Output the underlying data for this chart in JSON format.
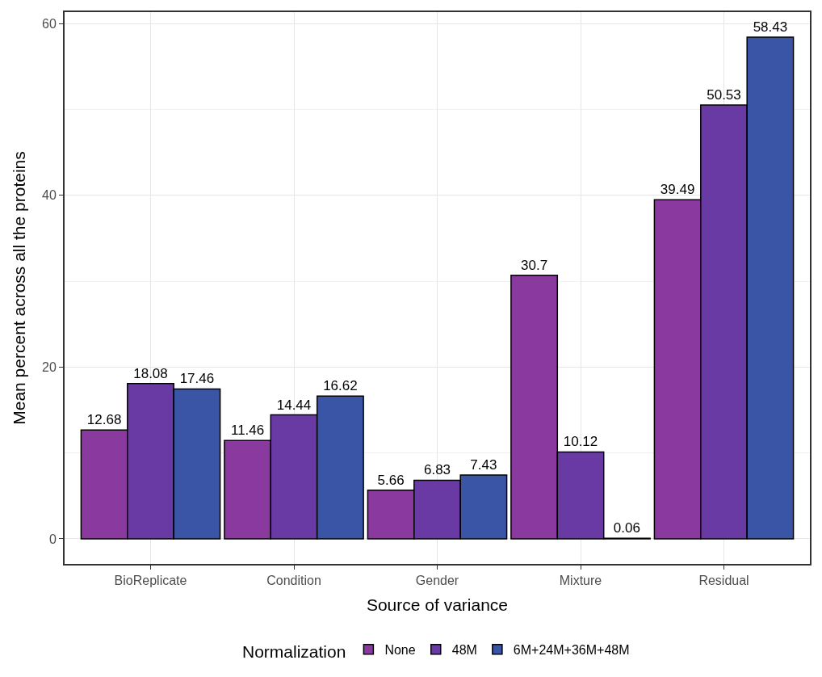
{
  "chart_data": {
    "type": "bar",
    "xlabel": "Source of variance",
    "ylabel": "Mean percent across all the proteins",
    "legend_title": "Normalization",
    "categories": [
      "BioReplicate",
      "Condition",
      "Gender",
      "Mixture",
      "Residual"
    ],
    "series": [
      {
        "name": "None",
        "color": "#8a3a9f",
        "values": [
          12.68,
          11.46,
          5.66,
          30.7,
          39.49
        ]
      },
      {
        "name": "48M",
        "color": "#6a3aa4",
        "values": [
          18.08,
          14.44,
          6.83,
          10.12,
          50.53
        ]
      },
      {
        "name": "6M+24M+36M+48M",
        "color": "#3b55a6",
        "values": [
          17.46,
          16.62,
          7.43,
          0.06,
          58.43
        ]
      }
    ],
    "ylim": [
      -2.92,
      61.35
    ],
    "yticks": [
      0,
      20,
      40,
      60
    ],
    "grid": true,
    "legend": "bottom",
    "data_labels": true
  }
}
